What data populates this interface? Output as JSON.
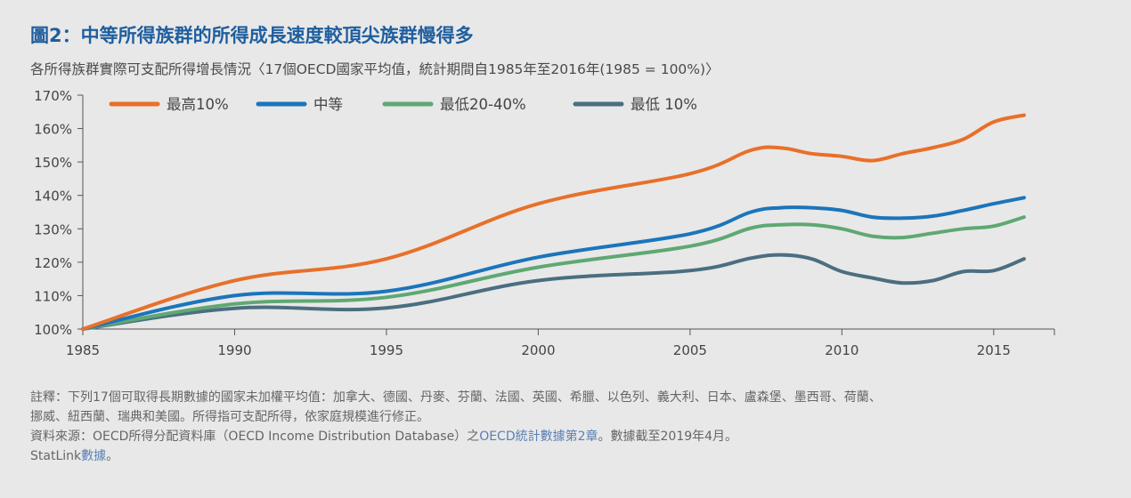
{
  "header": {
    "title": "圖2：中等所得族群的所得成長速度較頂尖族群慢得多",
    "subtitle": "各所得族群實際可支配所得增長情況〈17個OECD國家平均值，統計期間自1985年至2016年(1985 = 100%)〉"
  },
  "chart_data": {
    "type": "line",
    "x_ticks": [
      1985,
      1990,
      1995,
      2000,
      2005,
      2010,
      2015
    ],
    "y_ticks": [
      "100%",
      "110%",
      "120%",
      "130%",
      "140%",
      "150%",
      "160%",
      "170%"
    ],
    "xlim": [
      1985,
      2017
    ],
    "ylim": [
      100,
      170
    ],
    "legend_position": "top",
    "series": [
      {
        "name": "最高10%",
        "color": "#e8702a",
        "points": [
          [
            1985,
            100
          ],
          [
            1990,
            114.5
          ],
          [
            1995,
            121
          ],
          [
            2000,
            137.5
          ],
          [
            2005,
            146.5
          ],
          [
            2007,
            153.5
          ],
          [
            2008,
            154.2
          ],
          [
            2009,
            152.5
          ],
          [
            2010,
            151.7
          ],
          [
            2011,
            150.4
          ],
          [
            2012,
            152.5
          ],
          [
            2013,
            154.3
          ],
          [
            2014,
            156.8
          ],
          [
            2015,
            162
          ],
          [
            2016,
            164
          ]
        ]
      },
      {
        "name": "中等",
        "color": "#1b75bb",
        "points": [
          [
            1985,
            100
          ],
          [
            1990,
            110
          ],
          [
            1995,
            111.3
          ],
          [
            2000,
            121.5
          ],
          [
            2005,
            128.5
          ],
          [
            2007,
            135
          ],
          [
            2008,
            136.3
          ],
          [
            2009,
            136.3
          ],
          [
            2010,
            135.5
          ],
          [
            2011,
            133.5
          ],
          [
            2012,
            133.2
          ],
          [
            2013,
            133.8
          ],
          [
            2014,
            135.5
          ],
          [
            2015,
            137.5
          ],
          [
            2016,
            139.3
          ]
        ]
      },
      {
        "name": "最低20-40%",
        "color": "#5fa873",
        "points": [
          [
            1985,
            100
          ],
          [
            1990,
            107.5
          ],
          [
            1995,
            109.5
          ],
          [
            2000,
            118.5
          ],
          [
            2005,
            124.8
          ],
          [
            2007,
            130.2
          ],
          [
            2008,
            131.2
          ],
          [
            2009,
            131.2
          ],
          [
            2010,
            130
          ],
          [
            2011,
            127.8
          ],
          [
            2012,
            127.4
          ],
          [
            2013,
            128.7
          ],
          [
            2014,
            130
          ],
          [
            2015,
            130.8
          ],
          [
            2016,
            133.5
          ]
        ]
      },
      {
        "name": "最低 10%",
        "color": "#4b6e80",
        "points": [
          [
            1985,
            100
          ],
          [
            1990,
            106.2
          ],
          [
            1995,
            106.3
          ],
          [
            2000,
            114.5
          ],
          [
            2005,
            117.5
          ],
          [
            2007,
            121.2
          ],
          [
            2008,
            122.2
          ],
          [
            2009,
            121
          ],
          [
            2010,
            117.2
          ],
          [
            2011,
            115.3
          ],
          [
            2012,
            113.8
          ],
          [
            2013,
            114.5
          ],
          [
            2014,
            117.2
          ],
          [
            2015,
            117.5
          ],
          [
            2016,
            121
          ]
        ]
      }
    ]
  },
  "notes": {
    "line1": "註釋：下列17個可取得長期數據的國家未加權平均值：加拿大、德國、丹麥、芬蘭、法國、英國、希臘、以色列、義大利、日本、盧森堡、墨西哥、荷蘭、",
    "line2": "挪威、紐西蘭、瑞典和美國。所得指可支配所得，依家庭規模進行修正。",
    "line3_prefix": "資料來源：OECD所得分配資料庫（OECD Income Distribution Database）之",
    "line3_link": "OECD統計數據第2章",
    "line3_suffix": "。數據截至2019年4月。",
    "line4_prefix": "StatLink",
    "line4_link": "數據",
    "line4_suffix": "。"
  }
}
